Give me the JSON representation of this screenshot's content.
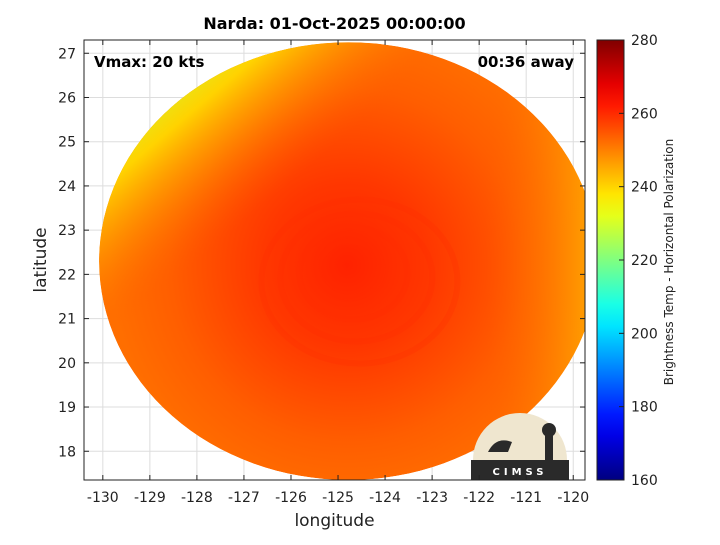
{
  "title": "Narda: 01-Oct-2025 00:00:00",
  "annotations": {
    "vmax": "Vmax: 20 kts",
    "time_away": "00:36 away"
  },
  "logo": {
    "text": "CIMSS"
  },
  "colors": {
    "axis": "#222222",
    "grid": "#dddddd",
    "background": "#ffffff"
  },
  "chart_data": {
    "type": "heatmap",
    "title": "Narda: 01-Oct-2025 00:00:00",
    "xlabel": "longitude",
    "ylabel": "latitude",
    "xlim": [
      -130.4,
      -119.75
    ],
    "ylim": [
      17.35,
      27.3
    ],
    "xticks": [
      -130,
      -129,
      -128,
      -127,
      -126,
      -125,
      -124,
      -123,
      -122,
      -121,
      -120
    ],
    "yticks": [
      18,
      19,
      20,
      21,
      22,
      23,
      24,
      25,
      26,
      27
    ],
    "grid": true,
    "swath": {
      "center": [
        -124.78,
        22.3
      ],
      "radius_lon": 5.3,
      "radius_lat": 4.95
    },
    "field": {
      "storm_center": [
        -124.8,
        22.2
      ],
      "core_min_value": 261,
      "ambient_value": 254,
      "warm_edge_value": 228,
      "warm_edge_location": "northwest edge of swath"
    },
    "colorbar": {
      "label": "Brightness Temp - Horizontal Polarization",
      "range": [
        160,
        280
      ],
      "ticks": [
        160,
        180,
        200,
        220,
        240,
        260,
        280
      ],
      "colormap": "jet"
    }
  }
}
